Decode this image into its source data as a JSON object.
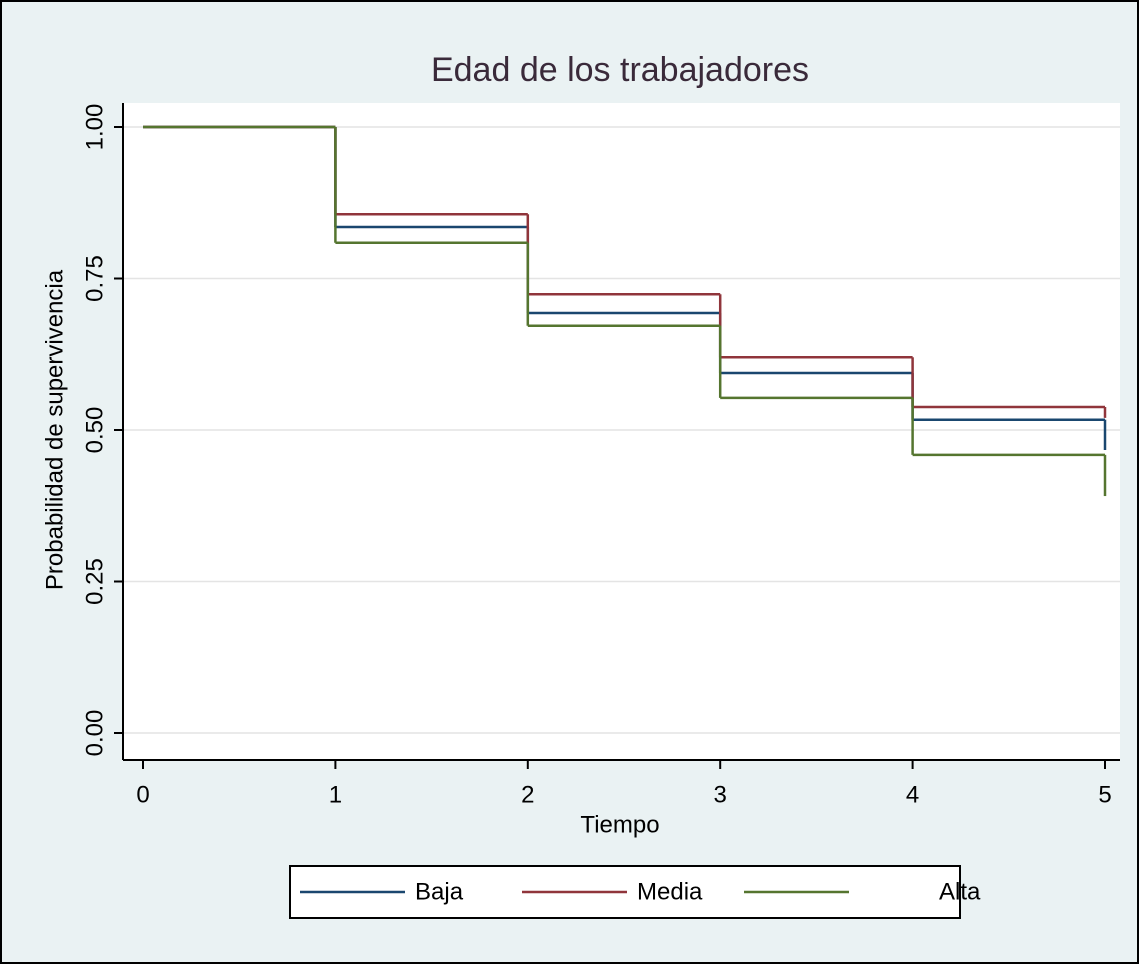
{
  "chart_data": {
    "type": "step",
    "title": "Edad de los trabajadores",
    "xlabel": "Tiempo",
    "ylabel": "Probabilidad de supervivencia",
    "x": [
      0,
      1,
      2,
      3,
      4,
      5
    ],
    "series": [
      {
        "name": "Baja",
        "color": "#1a476f",
        "values": [
          1.0,
          0.835,
          0.693,
          0.594,
          0.517,
          0.467
        ]
      },
      {
        "name": "Media",
        "color": "#90353b",
        "values": [
          1.0,
          0.856,
          0.724,
          0.62,
          0.538,
          0.52
        ]
      },
      {
        "name": "Alta",
        "color": "#55752f",
        "values": [
          1.0,
          0.809,
          0.672,
          0.553,
          0.459,
          0.391
        ]
      }
    ],
    "xlim": [
      0,
      5
    ],
    "xticks": [
      0,
      1,
      2,
      3,
      4,
      5
    ],
    "ylim": [
      0,
      1
    ],
    "yticks": [
      {
        "value": 0,
        "label": "0.00"
      },
      {
        "value": 0.25,
        "label": "0.25"
      },
      {
        "value": 0.5,
        "label": "0.50"
      },
      {
        "value": 0.75,
        "label": "0.75"
      },
      {
        "value": 1,
        "label": "1.00"
      }
    ],
    "grid": true,
    "legend": "bottom"
  }
}
